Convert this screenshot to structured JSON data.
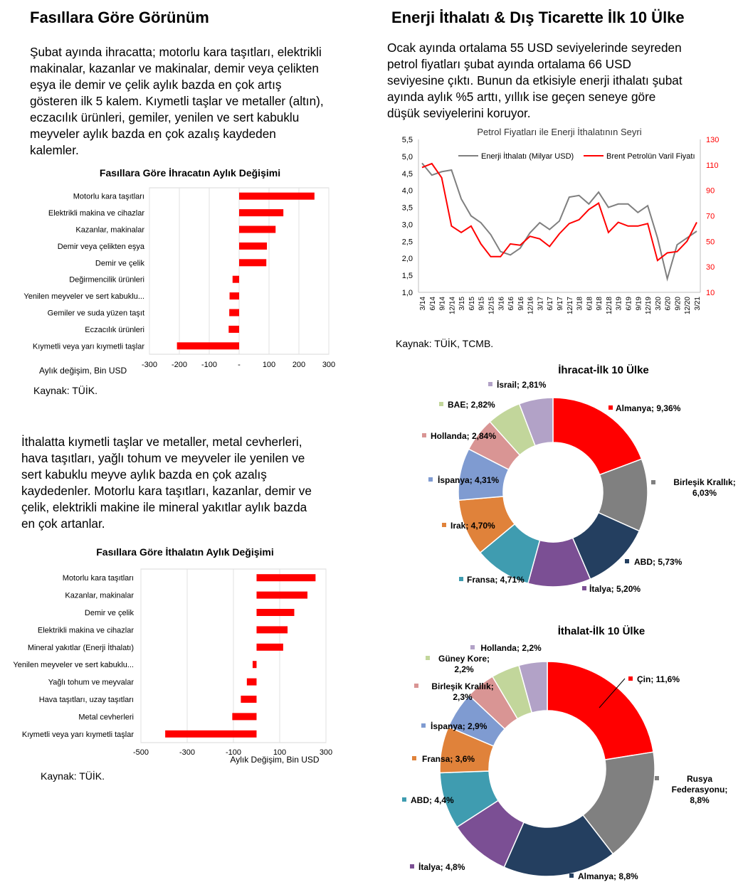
{
  "left": {
    "heading": "Fasıllara Göre Görünüm",
    "para1_lines": [
      "Şubat ayında ihracatta; motorlu kara taşıtları, elektrikli",
      "makinalar, kazanlar ve makinalar, demir veya çelikten",
      "eşya ile demir ve çelik aylık bazda en çok artış",
      "gösteren ilk 5 kalem. Kıymetli taşlar ve metaller (altın),",
      "eczacılık ürünleri, gemiler, yenilen ve sert kabuklu",
      "meyveler aylık bazda en çok azalış kaydeden",
      "kalemler."
    ],
    "source1": "Kaynak: TÜİK.",
    "para2_lines": [
      "İthalatta kıymetli taşlar ve metaller, metal cevherleri,",
      "hava taşıtları, yağlı tohum ve meyveler ile yenilen ve",
      "sert kabuklu meyve aylık bazda en çok azalış",
      "kaydedenler. Motorlu kara taşıtları, kazanlar, demir ve",
      "çelik, elektrikli makine ile mineral yakıtlar aylık bazda",
      "en çok artanlar."
    ],
    "source2": "Kaynak: TÜİK."
  },
  "right": {
    "heading": "Enerji İthalatı & Dış Ticarette İlk 10 Ülke",
    "para_lines": [
      "Ocak ayında ortalama 55 USD seviyelerinde seyreden",
      "petrol fiyatları şubat ayında ortalama 66 USD",
      "seviyesine çıktı. Bunun da etkisiyle enerji ithalatı şubat",
      "ayında aylık %5 arttı, yıllık ise geçen seneye göre",
      "düşük seviyelerini koruyor."
    ],
    "source": "Kaynak: TÜİK, TCMB."
  },
  "colors": {
    "bar": "#ff0000",
    "energy_line": "#7f7f7f",
    "brent_line": "#ff0000",
    "pie": [
      "#ff0000",
      "#808080",
      "#243f60",
      "#7b4f94",
      "#3f9cb0",
      "#e0823a",
      "#7f9bd1",
      "#d99594",
      "#c2d69b",
      "#b2a2c7"
    ]
  },
  "chart_data": [
    {
      "id": "export_change",
      "type": "bar",
      "orientation": "horizontal",
      "title": "Fasıllara Göre İhracatın Aylık Değişimi",
      "xlabel": "Aylık değişim, Bin USD",
      "categories": [
        "Motorlu kara taşıtları",
        "Elektrikli makina ve cihazlar",
        "Kazanlar, makinalar",
        "Demir veya çelikten eşya",
        "Demir ve çelik",
        "Değirmencilik ürünleri",
        "Yenilen meyveler ve sert kabuklu...",
        "Gemiler ve suda yüzen taşıt",
        "Eczacılık ürünleri",
        "Kıymetli veya yarı kıymetli taşlar"
      ],
      "values": [
        252,
        148,
        122,
        93,
        91,
        -22,
        -32,
        -33,
        -35,
        -208
      ],
      "xlim": [
        -300,
        300
      ],
      "xticks": [
        -300,
        -200,
        -100,
        0,
        100,
        200,
        300
      ],
      "xtick_labels": [
        "-300",
        "-200",
        "-100",
        "-",
        "100",
        "200",
        "300"
      ],
      "grid": true
    },
    {
      "id": "import_change",
      "type": "bar",
      "orientation": "horizontal",
      "title": "Fasıllara Göre İthalatın Aylık Değişimi",
      "xlabel": "Aylık Değişim, Bin USD",
      "categories": [
        "Motorlu kara taşıtları",
        "Kazanlar, makinalar",
        "Demir ve çelik",
        "Elektrikli makina ve cihazlar",
        "Mineral yakıtlar (Enerji İthalatı)",
        "Yenilen meyveler ve sert kabuklu...",
        "Yağlı tohum ve meyvalar",
        "Hava taşıtları, uzay taşıtları",
        "Metal cevherleri",
        "Kıymetli veya yarı kıymetli taşlar"
      ],
      "values": [
        255,
        220,
        163,
        134,
        115,
        -17,
        -42,
        -68,
        -105,
        -395
      ],
      "xlim": [
        -500,
        300
      ],
      "xticks": [
        -500,
        -300,
        -100,
        100,
        300
      ],
      "xtick_labels": [
        "-500",
        "-300",
        "-100",
        "100",
        "300"
      ],
      "grid": true
    },
    {
      "id": "energy_brent",
      "type": "line",
      "title": "Petrol Fiyatları ile Enerji İthalatının Seyri",
      "x": [
        "3/14",
        "6/14",
        "9/14",
        "12/14",
        "3/15",
        "6/15",
        "9/15",
        "12/15",
        "3/16",
        "6/16",
        "9/16",
        "12/16",
        "3/17",
        "6/17",
        "9/17",
        "12/17",
        "3/18",
        "6/18",
        "9/18",
        "12/18",
        "3/19",
        "6/19",
        "9/19",
        "12/19",
        "3/20",
        "6/20",
        "9/20",
        "12/20",
        "3/21"
      ],
      "series": [
        {
          "name": "Enerji İthalatı (Milyar USD)",
          "axis": "left",
          "values": [
            4.8,
            4.45,
            4.55,
            4.6,
            3.75,
            3.25,
            3.05,
            2.7,
            2.2,
            2.1,
            2.3,
            2.75,
            3.05,
            2.85,
            3.1,
            3.8,
            3.85,
            3.6,
            3.95,
            3.5,
            3.6,
            3.6,
            3.35,
            3.55,
            2.6,
            1.4,
            2.4,
            2.6,
            2.8
          ]
        },
        {
          "name": "Brent Petrolün Varil Fiyatı",
          "axis": "right",
          "values": [
            108,
            111,
            100,
            62,
            57,
            62,
            48,
            38,
            38,
            48,
            47,
            54,
            52,
            46,
            56,
            64,
            67,
            75,
            80,
            57,
            65,
            62,
            62,
            64,
            35,
            41,
            42,
            50,
            65
          ]
        }
      ],
      "ylim_left": [
        1.0,
        5.5
      ],
      "yticks_left": [
        "1,0",
        "1,5",
        "2,0",
        "2,5",
        "3,0",
        "3,5",
        "4,0",
        "4,5",
        "5,0",
        "5,5"
      ],
      "ylim_right": [
        10,
        130
      ],
      "yticks_right": [
        "10",
        "30",
        "50",
        "70",
        "90",
        "110",
        "130"
      ],
      "legend": "top"
    },
    {
      "id": "export_top10",
      "type": "pie",
      "donut": true,
      "title": "İhracat-İlk 10 Ülke",
      "labels": [
        "Almanya; 9,36%",
        "Birleşik Krallık; 6,03%",
        "ABD; 5,73%",
        "İtalya; 5,20%",
        "Fransa; 4,71%",
        "Irak; 4,70%",
        "İspanya; 4,31%",
        "Hollanda; 2,84%",
        "BAE; 2,82%",
        "İsrail; 2,81%"
      ],
      "values": [
        9.36,
        6.03,
        5.73,
        5.2,
        4.71,
        4.7,
        4.31,
        2.84,
        2.82,
        2.81
      ]
    },
    {
      "id": "import_top10",
      "type": "pie",
      "donut": true,
      "title": "İthalat-İlk 10 Ülke",
      "labels": [
        "Çin; 11,6%",
        "Rusya Federasyonu; 8,8%",
        "Almanya; 8,8%",
        "İtalya; 4,8%",
        "ABD; 4,4%",
        "Fransa; 3,6%",
        "İspanya; 2,9%",
        "Birleşik Krallık; 2,3%",
        "Güney Kore; 2,2%",
        "Hollanda; 2,2%"
      ],
      "values": [
        11.6,
        8.8,
        8.8,
        4.8,
        4.4,
        3.6,
        2.9,
        2.3,
        2.2,
        2.2
      ]
    }
  ]
}
